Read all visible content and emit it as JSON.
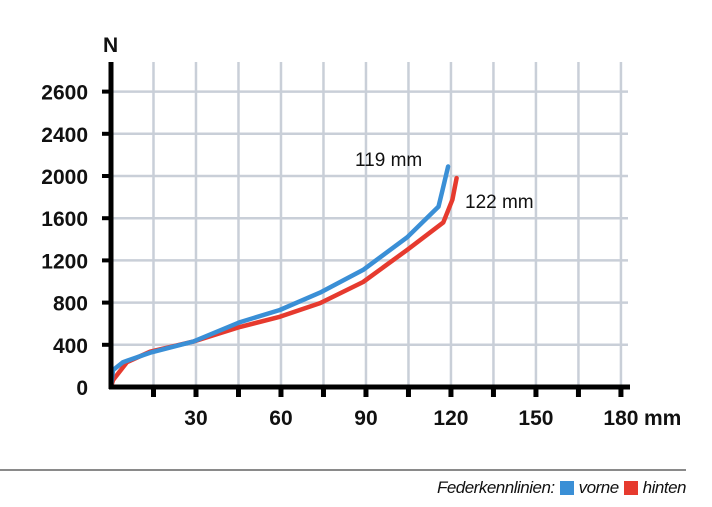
{
  "chart_data": {
    "type": "line",
    "ylabel": "N",
    "xlabel": "mm",
    "yticks": [
      "0",
      "400",
      "800",
      "1200",
      "1600",
      "2000",
      "2400",
      "2600"
    ],
    "xticks": [
      "30",
      "60",
      "90",
      "120",
      "150",
      "180"
    ],
    "xlim": [
      0,
      180
    ],
    "grid": true,
    "series": [
      {
        "name": "vorne",
        "color": "#3a8fd6",
        "x": [
          0,
          0.7,
          4.2,
          13.8,
          29,
          45.6,
          59.6,
          73.8,
          89,
          104.6,
          115.6,
          117,
          119
        ],
        "y": [
          0,
          160,
          235,
          325,
          430,
          615,
          730,
          895,
          1110,
          1420,
          1710,
          1865,
          2090
        ]
      },
      {
        "name": "hinten",
        "color": "#e63a2e",
        "x": [
          0,
          0.7,
          5.6,
          13.8,
          29,
          45.6,
          59.6,
          73.8,
          89,
          104.6,
          117.3,
          120.5,
          122
        ],
        "y": [
          0,
          65,
          235,
          335,
          430,
          570,
          665,
          795,
          995,
          1300,
          1560,
          1775,
          1980
        ]
      }
    ],
    "annotations": [
      {
        "text": "119 mm",
        "series": "vorne"
      },
      {
        "text": "122 mm",
        "series": "hinten"
      }
    ],
    "legend": {
      "title": "Federkennlinien:",
      "placement": "bottom-right"
    }
  }
}
